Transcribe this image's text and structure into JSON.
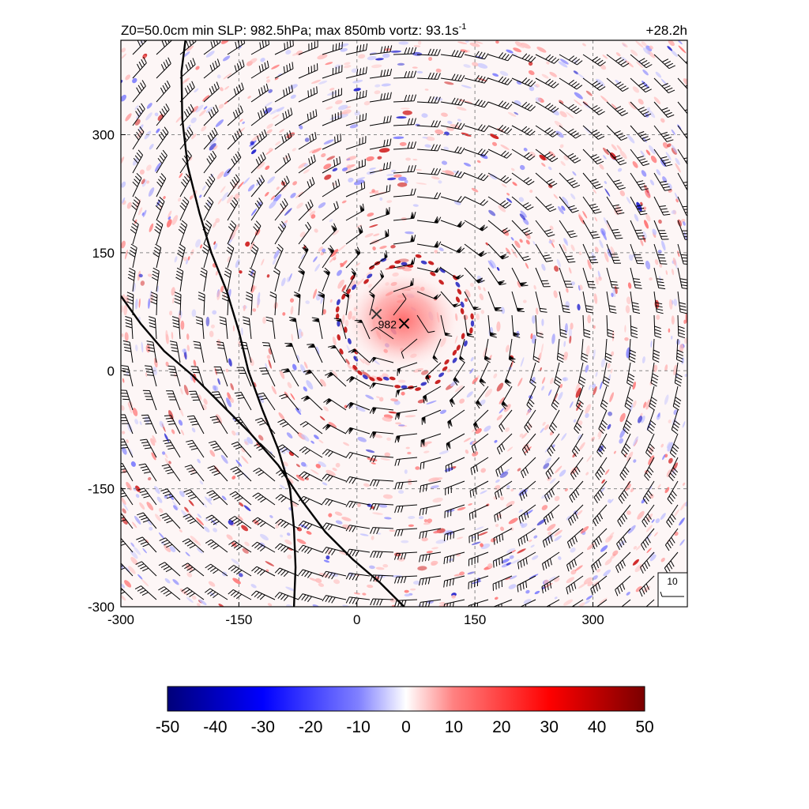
{
  "header": {
    "title_prefix": "Z0=50.0cm  min SLP: 982.5hPa; max 850mb vortz:  93.1s",
    "title_exponent": "-1",
    "time_label": "+28.2h"
  },
  "chart_data": {
    "type": "heatmap",
    "field": "850mb relative vorticity with wind barbs",
    "x_ticks": [
      -300,
      -150,
      0,
      150,
      300
    ],
    "y_ticks": [
      -300,
      -150,
      0,
      150,
      300
    ],
    "xlim": [
      -300,
      420
    ],
    "ylim": [
      -300,
      420
    ],
    "grid": true,
    "center_label": "982",
    "center_markers": [
      {
        "x": 25,
        "y": 72,
        "color": "#333333"
      },
      {
        "x": 60,
        "y": 60,
        "color": "#000000"
      }
    ],
    "coast_lines": [
      [
        [
          -218,
          420
        ],
        [
          -223,
          380
        ],
        [
          -222,
          320
        ],
        [
          -215,
          260
        ],
        [
          -200,
          200
        ],
        [
          -185,
          150
        ],
        [
          -165,
          100
        ],
        [
          -150,
          50
        ],
        [
          -138,
          0
        ],
        [
          -120,
          -50
        ],
        [
          -100,
          -100
        ],
        [
          -85,
          -150
        ],
        [
          -80,
          -200
        ],
        [
          -78,
          -250
        ],
        [
          -80,
          -300
        ]
      ],
      [
        [
          -300,
          95
        ],
        [
          -275,
          60
        ],
        [
          -245,
          25
        ],
        [
          -210,
          -5
        ],
        [
          -175,
          -40
        ],
        [
          -135,
          -80
        ],
        [
          -100,
          -120
        ],
        [
          -70,
          -165
        ],
        [
          -40,
          -205
        ],
        [
          -5,
          -240
        ],
        [
          30,
          -270
        ],
        [
          60,
          -300
        ]
      ]
    ],
    "colorbar": {
      "ticks": [
        -50,
        -40,
        -30,
        -20,
        -10,
        0,
        10,
        20,
        30,
        40,
        50
      ],
      "colors": [
        "#00007a",
        "#0000ff",
        "#7a7aff",
        "#ffffff",
        "#ff7a7a",
        "#ff0000",
        "#7a0000"
      ]
    },
    "reference_barb": {
      "label": "10"
    }
  }
}
